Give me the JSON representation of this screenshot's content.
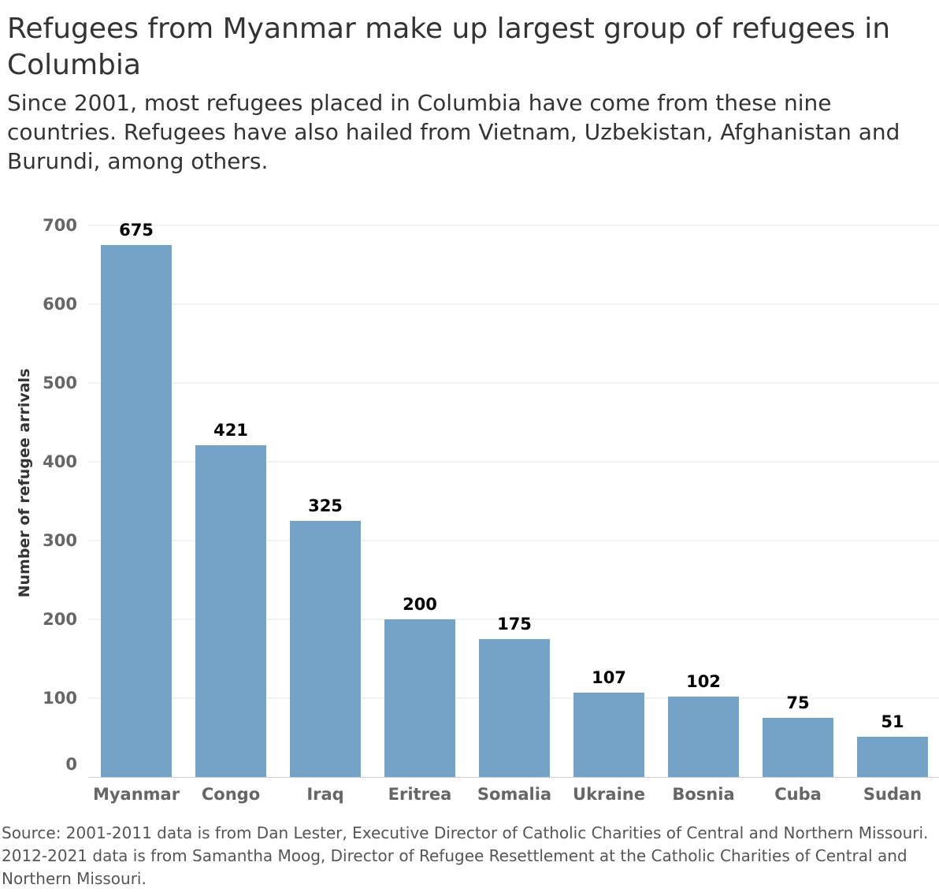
{
  "chart_data": {
    "type": "bar",
    "title": "Refugees from Myanmar make up largest group of refugees in Columbia",
    "subtitle": "Since 2001, most refugees placed in Columbia have come from these nine countries. Refugees have also hailed from Vietnam, Uzbekistan, Afghanistan and Burundi, among others.",
    "ylabel": "Number of refugee arrivals",
    "xlabel": "",
    "categories": [
      "Myanmar",
      "Congo",
      "Iraq",
      "Eritrea",
      "Somalia",
      "Ukraine",
      "Bosnia",
      "Cuba",
      "Sudan"
    ],
    "values": [
      675,
      421,
      325,
      200,
      175,
      107,
      102,
      75,
      51
    ],
    "ylim": [
      0,
      700
    ],
    "yticks": [
      0,
      100,
      200,
      300,
      400,
      500,
      600,
      700
    ],
    "grid": "horizontal",
    "bar_color": "#75a2c7",
    "source": "Source: 2001-2011 data is from Dan Lester, Executive Director of Catholic Charities of Central and Northern Missouri. 2012-2021 data is from Samantha Moog, Director of Refugee Resettlement at the Catholic Charities of Central and Northern Missouri."
  }
}
